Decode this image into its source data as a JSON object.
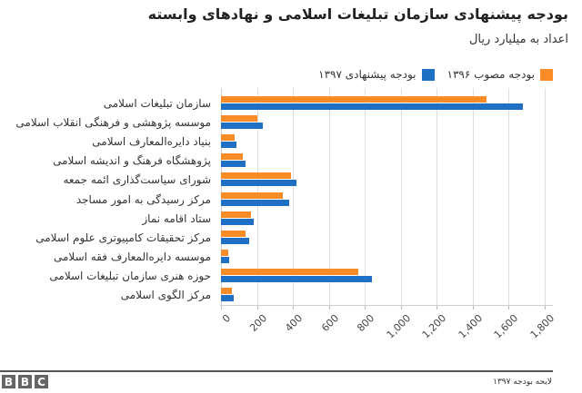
{
  "header": {
    "title": "بودجه پیشنهادی سازمان تبلیغات اسلامی و نهادهای وابسته",
    "subtitle": "اعداد به میلیارد ریال"
  },
  "footer": {
    "logo_letters": [
      "B",
      "B",
      "C"
    ],
    "source": "لایحه بودجه ۱۳۹۷"
  },
  "colors": {
    "approved_1396": "#FA8C28",
    "proposed_1397": "#1F6FC5",
    "grid": "#dedede"
  },
  "chart_data": {
    "type": "bar",
    "orientation": "horizontal",
    "title": "بودجه پیشنهادی سازمان تبلیغات اسلامی و نهادهای وابسته",
    "subtitle": "اعداد به میلیارد ریال",
    "xlabel": "",
    "ylabel": "",
    "xlim": [
      0,
      1800
    ],
    "x_ticks": [
      "0",
      "200",
      "400",
      "600",
      "800",
      "1,000",
      "1,200",
      "1,400",
      "1,600",
      "1,800"
    ],
    "grid": true,
    "legend_position": "top-right",
    "categories": [
      "سازمان تبلیغات اسلامی",
      "موسسه پژوهشی و فرهنگی انقلاب اسلامی",
      "بنیاد دایره‌المعارف اسلامی",
      "پژوهشگاه فرهنگ و اندیشه اسلامی",
      "شورای سیاست‌گذاری ائمه جمعه",
      "مرکز رسیدگی به امور مساجد",
      "ستاد اقامه نماز",
      "مرکز تحقیقات کامپیوتری علوم اسلامی",
      "موسسه دایره‌المعارف فقه اسلامی",
      "حوزه هنری سازمان تبلیغات اسلامی",
      "مرکز الگوی اسلامی"
    ],
    "series": [
      {
        "name": "بودجه مصوب ۱۳۹۶",
        "color": "#FA8C28",
        "values": [
          1478,
          200,
          78,
          120,
          388,
          343,
          167,
          137,
          42,
          761,
          62
        ]
      },
      {
        "name": "بودجه پیشنهادی ۱۳۹۷",
        "color": "#1F6FC5",
        "values": [
          1681,
          233,
          88,
          135,
          419,
          380,
          182,
          155,
          47,
          841,
          72
        ]
      }
    ]
  }
}
